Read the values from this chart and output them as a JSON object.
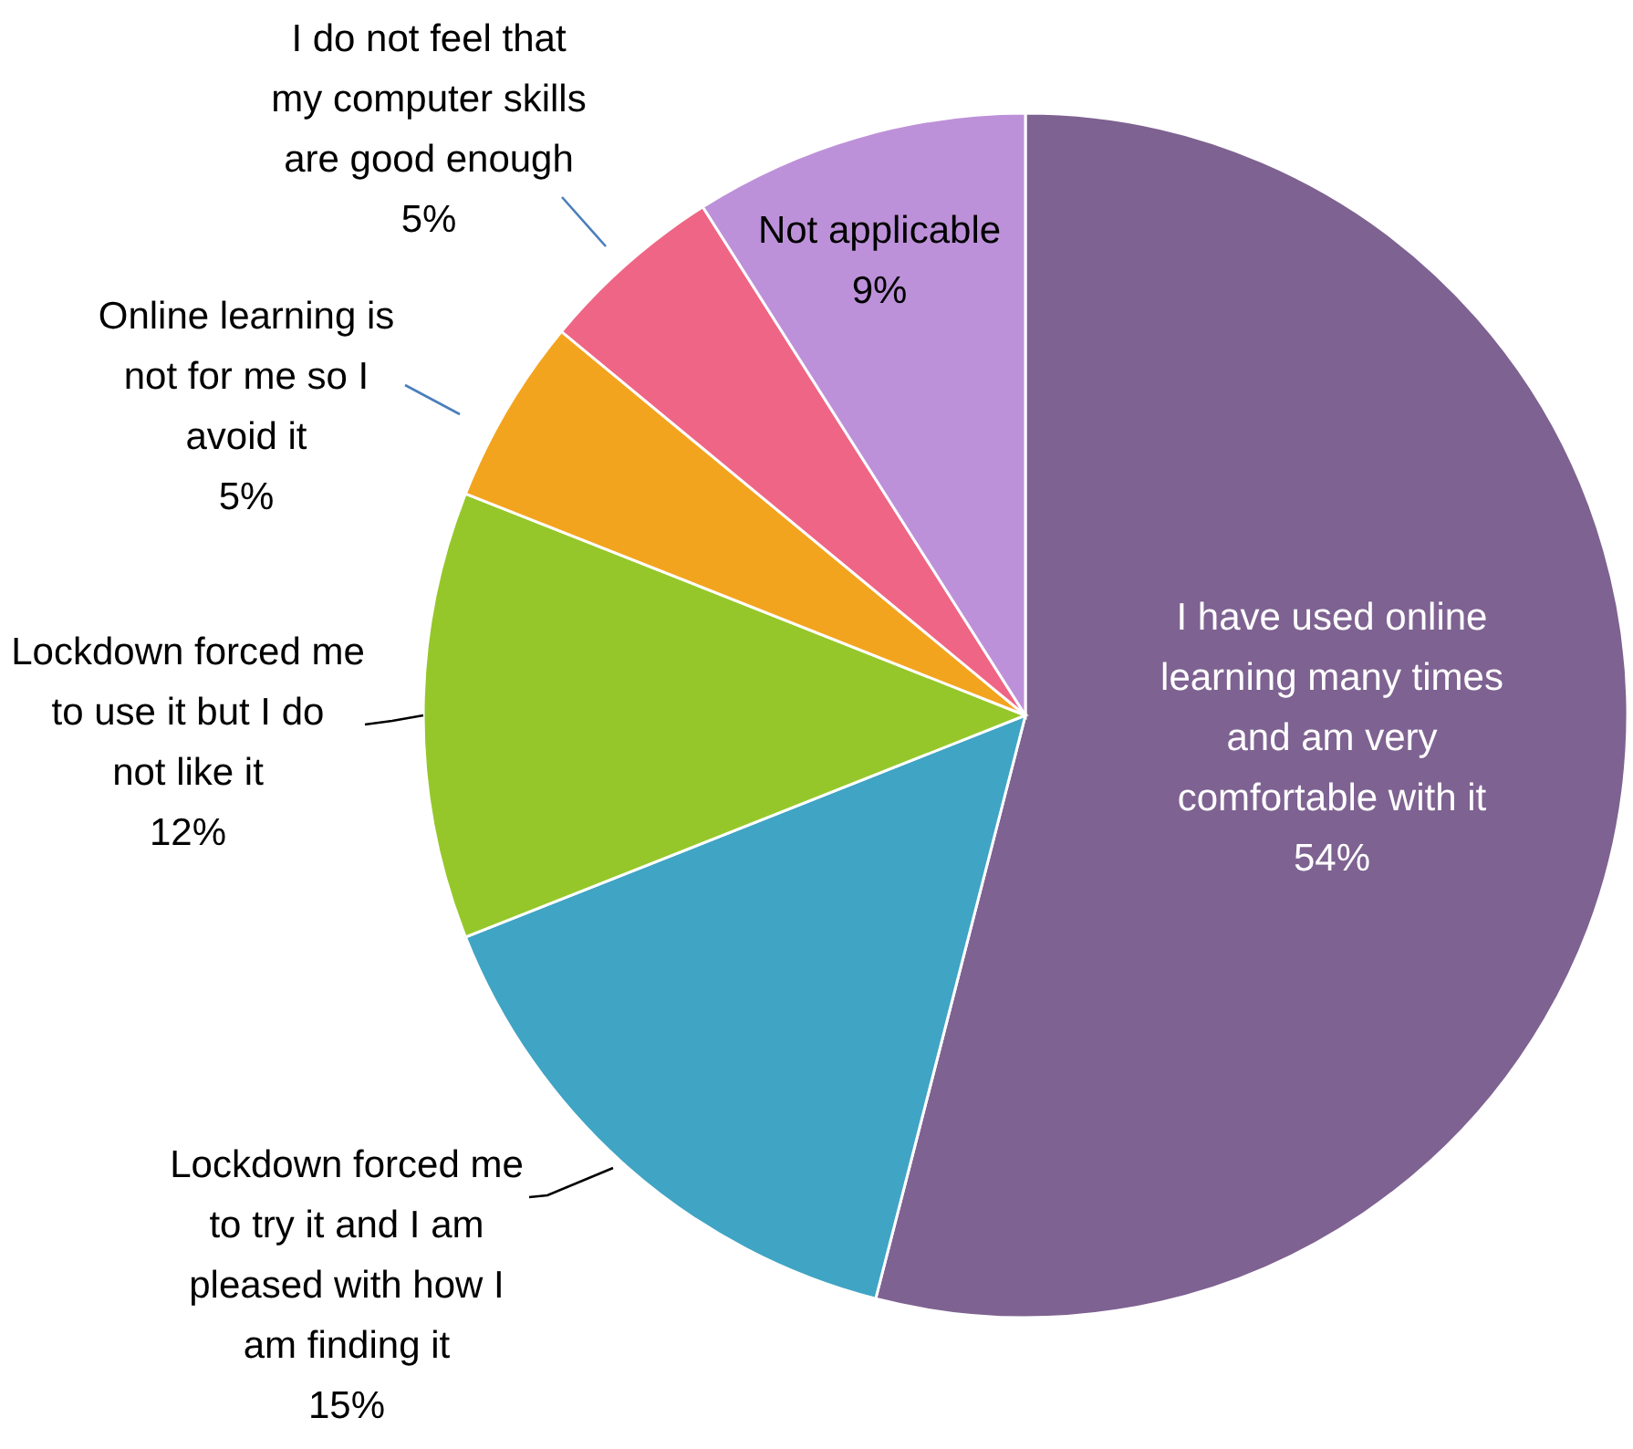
{
  "chart_data": {
    "type": "pie",
    "categories": [
      "I have used online learning many times and am very comfortable with it",
      "Lockdown forced me to try it and I am pleased with how I am finding it",
      "Lockdown forced me to use it but I do not like it",
      "Online learning is not for me so I avoid it",
      "I do not feel that my computer skills are good enough",
      "Not applicable"
    ],
    "values": [
      54,
      15,
      12,
      5,
      5,
      9
    ],
    "value_labels": [
      "54%",
      "15%",
      "12%",
      "5%",
      "5%",
      "9%"
    ],
    "colors": [
      "#7e6291",
      "#40a4c4",
      "#96c72a",
      "#f3a41e",
      "#ef6585",
      "#bd91d9"
    ]
  }
}
